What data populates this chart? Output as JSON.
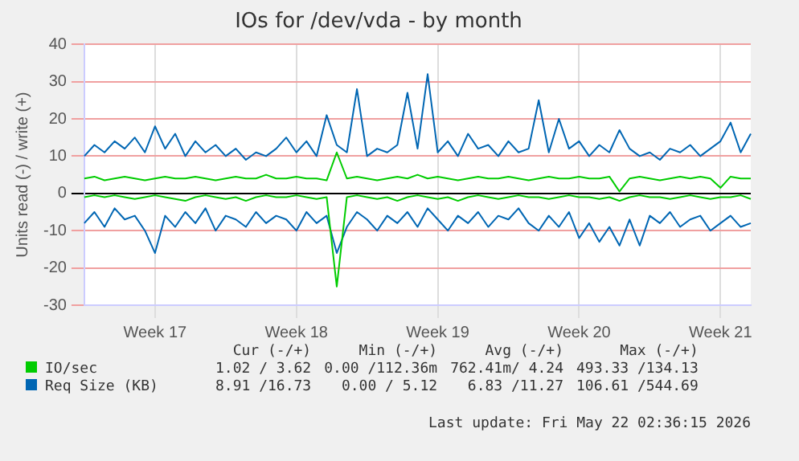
{
  "chart_data": {
    "type": "line",
    "title": "IOs for /dev/vda - by month",
    "ylabel": "Units read (-) / write (+)",
    "categories": [
      null,
      null,
      null,
      null,
      null,
      null,
      null,
      "Week 17",
      null,
      null,
      null,
      null,
      null,
      null,
      null,
      null,
      null,
      null,
      null,
      null,
      null,
      "Week 18",
      null,
      null,
      null,
      null,
      null,
      null,
      null,
      null,
      null,
      null,
      null,
      null,
      null,
      "Week 19",
      null,
      null,
      null,
      null,
      null,
      null,
      null,
      null,
      null,
      null,
      null,
      null,
      null,
      "Week 20",
      null,
      null,
      null,
      null,
      null,
      null,
      null,
      null,
      null,
      null,
      null,
      null,
      null,
      "Week 21",
      null,
      null,
      null
    ],
    "series": [
      {
        "color": "#00cc00",
        "values": [
          -1,
          -0.5,
          -1,
          -0.5,
          -1,
          -1.5,
          -1,
          -0.5,
          -1,
          -1.5,
          -2,
          -1,
          -0.5,
          -1,
          -1.5,
          -1,
          -2,
          -1,
          -0.5,
          -1,
          -1,
          -0.5,
          -1,
          -1.5,
          -1,
          -25,
          -1,
          -0.5,
          -1,
          -1.5,
          -1,
          -2,
          -1,
          -0.5,
          -1,
          -1.5,
          -1,
          -2,
          -1,
          -0.5,
          -1,
          -1.5,
          -1,
          -0.5,
          -1,
          -1,
          -1.5,
          -1,
          -0.5,
          -1,
          -1,
          -1.5,
          -1,
          -2,
          -1,
          -0.5,
          -1,
          -1,
          -1.5,
          -1,
          -0.5,
          -1,
          -1.5,
          -1,
          -1,
          -0.5,
          -1.5
        ]
      },
      {
        "name": "IO/sec",
        "color": "#00cc00",
        "values": [
          4,
          4.5,
          3.5,
          4,
          4.5,
          4,
          3.5,
          4,
          4.5,
          4,
          4,
          4.5,
          4,
          3.5,
          4,
          4.5,
          4,
          4,
          5,
          4,
          4,
          4.5,
          4,
          4,
          3.5,
          11,
          4,
          4.5,
          4,
          3.5,
          4,
          4.5,
          4,
          5,
          4,
          4.5,
          4,
          3.5,
          4,
          4.5,
          4,
          4,
          4.5,
          4,
          3.5,
          4,
          4.5,
          4,
          4,
          4.5,
          4,
          4,
          4.5,
          0.5,
          4,
          4.5,
          4,
          3.5,
          4,
          4.5,
          4,
          4.5,
          4,
          1.5,
          4.5,
          4,
          4
        ]
      },
      {
        "color": "#0066b3",
        "values": [
          -8,
          -5,
          -9,
          -4,
          -7,
          -6,
          -10,
          -16,
          -6,
          -9,
          -5,
          -8,
          -4,
          -10,
          -6,
          -7,
          -9,
          -5,
          -8,
          -6,
          -7,
          -10,
          -5,
          -8,
          -6,
          -16,
          -9,
          -5,
          -7,
          -10,
          -6,
          -8,
          -5,
          -9,
          -4,
          -7,
          -10,
          -6,
          -8,
          -5,
          -9,
          -6,
          -7,
          -4,
          -8,
          -10,
          -6,
          -9,
          -5,
          -12,
          -8,
          -13,
          -9,
          -14,
          -7,
          -14,
          -6,
          -8,
          -5,
          -9,
          -7,
          -6,
          -10,
          -8,
          -6,
          -9,
          -8
        ]
      },
      {
        "name": "Req Size (KB)",
        "color": "#0066b3",
        "values": [
          10,
          13,
          11,
          14,
          12,
          15,
          11,
          18,
          12,
          16,
          10,
          14,
          11,
          13,
          10,
          12,
          9,
          11,
          10,
          12,
          15,
          11,
          14,
          10,
          21,
          13,
          11,
          28,
          10,
          12,
          11,
          13,
          27,
          12,
          32,
          11,
          14,
          10,
          16,
          12,
          13,
          10,
          14,
          11,
          12,
          25,
          11,
          20,
          12,
          14,
          10,
          13,
          11,
          17,
          12,
          10,
          11,
          9,
          12,
          11,
          13,
          10,
          12,
          14,
          19,
          11,
          16
        ]
      }
    ],
    "ylim": [
      -30,
      40
    ],
    "yticks": [
      -30,
      -20,
      -10,
      0,
      10,
      20,
      30,
      40
    ],
    "grid": true,
    "legend": "bottom",
    "marker": "none",
    "line_style": "solid",
    "annotations": [
      "Cur (-/+)",
      "Min (-/+)",
      "Avg (-/+)",
      "Max (-/+)",
      "1.02 / 3.62",
      "0.00 /112.36m",
      "762.41m/ 4.24",
      "493.33 /134.13",
      "8.91 /16.73",
      "0.00 / 5.12",
      "6.83 /11.27",
      "106.61 /544.69",
      "Last update: Fri May 22 02:36:15 2026"
    ]
  }
}
